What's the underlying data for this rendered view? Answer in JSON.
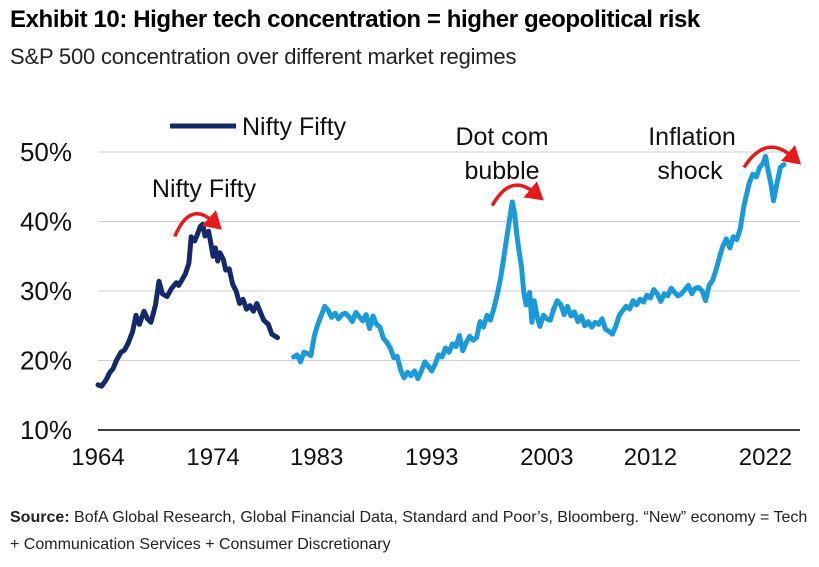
{
  "title": "Exhibit 10: Higher tech concentration = higher geopolitical risk",
  "subtitle": "S&P 500 concentration over different market regimes",
  "source": {
    "label": "Source:",
    "text": "BofA Global Research, Global Financial Data, Standard and Poor’s, Bloomberg. “New” economy = Tech + Communication Services + Consumer Discretionary"
  },
  "colors": {
    "nifty_series": "#14296B",
    "main_series": "#1A9AD9",
    "arrow": "#E51B1B",
    "grid": "#CFCFCF"
  },
  "chart_data": {
    "type": "line",
    "title": "",
    "xlabel": "",
    "ylabel": "",
    "xlim": [
      1964,
      2025
    ],
    "ylim": [
      10,
      50
    ],
    "x_ticks": [
      "1964",
      "1974",
      "1983",
      "1993",
      "2003",
      "2012",
      "2022"
    ],
    "y_ticks": [
      "10%",
      "20%",
      "30%",
      "40%",
      "50%"
    ],
    "grid": "horizontal",
    "legend": {
      "position": "top-left",
      "entries": [
        "Nifty Fifty"
      ]
    },
    "annotations": [
      {
        "text": "Nifty Fifty",
        "year": 1972.5,
        "value": 39
      },
      {
        "text": "Dot com bubble",
        "year": 2000,
        "value": 43
      },
      {
        "text": "Inflation shock",
        "year": 2021,
        "value": 49.5
      }
    ],
    "series": [
      {
        "name": "Nifty Fifty",
        "points": [
          [
            1964.0,
            16.5
          ],
          [
            1964.3,
            16.3
          ],
          [
            1964.7,
            17.2
          ],
          [
            1965.0,
            18.2
          ],
          [
            1965.3,
            18.8
          ],
          [
            1965.6,
            20.0
          ],
          [
            1966.0,
            21.2
          ],
          [
            1966.3,
            21.5
          ],
          [
            1966.6,
            22.4
          ],
          [
            1967.0,
            24.1
          ],
          [
            1967.3,
            26.5
          ],
          [
            1967.6,
            25.2
          ],
          [
            1968.0,
            27.1
          ],
          [
            1968.3,
            26.0
          ],
          [
            1968.6,
            25.5
          ],
          [
            1969.0,
            28.0
          ],
          [
            1969.3,
            31.4
          ],
          [
            1969.6,
            29.6
          ],
          [
            1970.0,
            29.2
          ],
          [
            1970.4,
            30.4
          ],
          [
            1970.8,
            31.2
          ],
          [
            1971.0,
            30.8
          ],
          [
            1971.3,
            31.6
          ],
          [
            1971.6,
            32.5
          ],
          [
            1971.9,
            34.0
          ],
          [
            1972.1,
            37.8
          ],
          [
            1972.4,
            37.2
          ],
          [
            1972.6,
            38.0
          ],
          [
            1972.9,
            39.3
          ],
          [
            1973.1,
            39.6
          ],
          [
            1973.3,
            37.9
          ],
          [
            1973.6,
            38.6
          ],
          [
            1973.8,
            36.9
          ],
          [
            1974.0,
            35.0
          ],
          [
            1974.2,
            36.2
          ],
          [
            1974.4,
            34.3
          ],
          [
            1974.6,
            35.5
          ],
          [
            1974.9,
            34.5
          ],
          [
            1975.1,
            33.0
          ],
          [
            1975.4,
            33.2
          ],
          [
            1975.7,
            31.0
          ],
          [
            1976.0,
            30.0
          ],
          [
            1976.3,
            28.2
          ],
          [
            1976.6,
            28.8
          ],
          [
            1976.9,
            27.4
          ],
          [
            1977.2,
            27.9
          ],
          [
            1977.5,
            27.1
          ],
          [
            1977.8,
            28.2
          ],
          [
            1978.1,
            27.0
          ],
          [
            1978.4,
            25.8
          ],
          [
            1978.8,
            25.2
          ],
          [
            1979.1,
            23.8
          ],
          [
            1979.4,
            23.5
          ],
          [
            1979.6,
            23.3
          ]
        ]
      },
      {
        "name": "S&P 500 concentration",
        "points": [
          [
            1981.0,
            20.5
          ],
          [
            1981.3,
            20.8
          ],
          [
            1981.6,
            19.8
          ],
          [
            1981.9,
            21.2
          ],
          [
            1982.2,
            21.0
          ],
          [
            1982.5,
            20.7
          ],
          [
            1982.8,
            23.6
          ],
          [
            1983.1,
            25.2
          ],
          [
            1983.4,
            26.5
          ],
          [
            1983.7,
            27.8
          ],
          [
            1984.0,
            27.2
          ],
          [
            1984.3,
            26.2
          ],
          [
            1984.6,
            26.8
          ],
          [
            1984.9,
            26.0
          ],
          [
            1985.2,
            26.6
          ],
          [
            1985.5,
            26.8
          ],
          [
            1985.8,
            26.3
          ],
          [
            1986.1,
            25.6
          ],
          [
            1986.4,
            26.9
          ],
          [
            1986.7,
            26.3
          ],
          [
            1987.0,
            25.7
          ],
          [
            1987.3,
            26.6
          ],
          [
            1987.6,
            24.6
          ],
          [
            1987.9,
            26.4
          ],
          [
            1988.2,
            25.2
          ],
          [
            1988.5,
            24.8
          ],
          [
            1988.8,
            23.2
          ],
          [
            1989.1,
            22.6
          ],
          [
            1989.4,
            21.8
          ],
          [
            1989.7,
            20.4
          ],
          [
            1990.0,
            20.6
          ],
          [
            1990.3,
            18.6
          ],
          [
            1990.6,
            17.5
          ],
          [
            1990.9,
            18.3
          ],
          [
            1991.2,
            17.8
          ],
          [
            1991.5,
            18.5
          ],
          [
            1991.8,
            17.4
          ],
          [
            1992.1,
            18.5
          ],
          [
            1992.4,
            19.8
          ],
          [
            1992.7,
            19.2
          ],
          [
            1993.0,
            18.5
          ],
          [
            1993.3,
            19.5
          ],
          [
            1993.6,
            20.8
          ],
          [
            1993.9,
            20.5
          ],
          [
            1994.2,
            21.8
          ],
          [
            1994.5,
            21.2
          ],
          [
            1994.8,
            22.4
          ],
          [
            1995.1,
            22.0
          ],
          [
            1995.4,
            23.6
          ],
          [
            1995.7,
            21.4
          ],
          [
            1996.0,
            22.6
          ],
          [
            1996.3,
            23.5
          ],
          [
            1996.6,
            22.9
          ],
          [
            1996.9,
            23.3
          ],
          [
            1997.2,
            25.6
          ],
          [
            1997.5,
            24.8
          ],
          [
            1997.8,
            26.5
          ],
          [
            1998.1,
            25.8
          ],
          [
            1998.4,
            27.5
          ],
          [
            1998.7,
            29.5
          ],
          [
            1999.0,
            32.0
          ],
          [
            1999.3,
            35.2
          ],
          [
            1999.6,
            38.6
          ],
          [
            2000.0,
            42.8
          ],
          [
            2000.2,
            41.2
          ],
          [
            2000.4,
            38.0
          ],
          [
            2000.6,
            35.6
          ],
          [
            2000.8,
            33.5
          ],
          [
            2001.0,
            29.8
          ],
          [
            2001.2,
            28.0
          ],
          [
            2001.5,
            29.8
          ],
          [
            2001.7,
            25.5
          ],
          [
            2001.9,
            28.6
          ],
          [
            2002.2,
            26.0
          ],
          [
            2002.4,
            24.9
          ],
          [
            2002.7,
            26.5
          ],
          [
            2003.0,
            26.0
          ],
          [
            2003.3,
            25.8
          ],
          [
            2003.6,
            27.4
          ],
          [
            2003.9,
            28.6
          ],
          [
            2004.2,
            28.1
          ],
          [
            2004.5,
            26.6
          ],
          [
            2004.8,
            27.8
          ],
          [
            2005.1,
            26.4
          ],
          [
            2005.4,
            27.0
          ],
          [
            2005.7,
            25.6
          ],
          [
            2006.0,
            26.4
          ],
          [
            2006.3,
            25.0
          ],
          [
            2006.6,
            25.6
          ],
          [
            2006.9,
            24.8
          ],
          [
            2007.2,
            25.5
          ],
          [
            2007.5,
            25.2
          ],
          [
            2007.8,
            26.0
          ],
          [
            2008.1,
            24.5
          ],
          [
            2008.4,
            24.2
          ],
          [
            2008.7,
            23.8
          ],
          [
            2009.0,
            25.0
          ],
          [
            2009.3,
            26.5
          ],
          [
            2009.6,
            27.2
          ],
          [
            2009.9,
            27.8
          ],
          [
            2010.2,
            27.4
          ],
          [
            2010.5,
            28.6
          ],
          [
            2010.8,
            28.0
          ],
          [
            2011.1,
            28.8
          ],
          [
            2011.4,
            28.4
          ],
          [
            2011.7,
            29.4
          ],
          [
            2012.0,
            29.0
          ],
          [
            2012.3,
            30.2
          ],
          [
            2012.6,
            29.6
          ],
          [
            2012.9,
            28.5
          ],
          [
            2013.2,
            29.6
          ],
          [
            2013.5,
            29.3
          ],
          [
            2013.8,
            30.4
          ],
          [
            2014.1,
            29.8
          ],
          [
            2014.4,
            29.3
          ],
          [
            2014.7,
            29.6
          ],
          [
            2015.0,
            30.2
          ],
          [
            2015.3,
            30.8
          ],
          [
            2015.6,
            29.6
          ],
          [
            2015.9,
            30.4
          ],
          [
            2016.2,
            30.5
          ],
          [
            2016.5,
            30.0
          ],
          [
            2016.8,
            28.6
          ],
          [
            2017.1,
            30.8
          ],
          [
            2017.4,
            31.5
          ],
          [
            2017.7,
            33.0
          ],
          [
            2018.0,
            34.8
          ],
          [
            2018.3,
            36.5
          ],
          [
            2018.6,
            37.5
          ],
          [
            2018.9,
            36.2
          ],
          [
            2019.2,
            37.8
          ],
          [
            2019.5,
            37.4
          ],
          [
            2019.8,
            38.9
          ],
          [
            2020.1,
            42.0
          ],
          [
            2020.3,
            43.5
          ],
          [
            2020.6,
            45.6
          ],
          [
            2020.9,
            46.8
          ],
          [
            2021.2,
            46.4
          ],
          [
            2021.5,
            47.8
          ],
          [
            2021.8,
            48.4
          ],
          [
            2022.0,
            49.4
          ],
          [
            2022.2,
            47.6
          ],
          [
            2022.5,
            45.2
          ],
          [
            2022.7,
            43.0
          ],
          [
            2023.0,
            45.5
          ],
          [
            2023.3,
            47.8
          ],
          [
            2023.6,
            48.2
          ]
        ]
      }
    ]
  }
}
